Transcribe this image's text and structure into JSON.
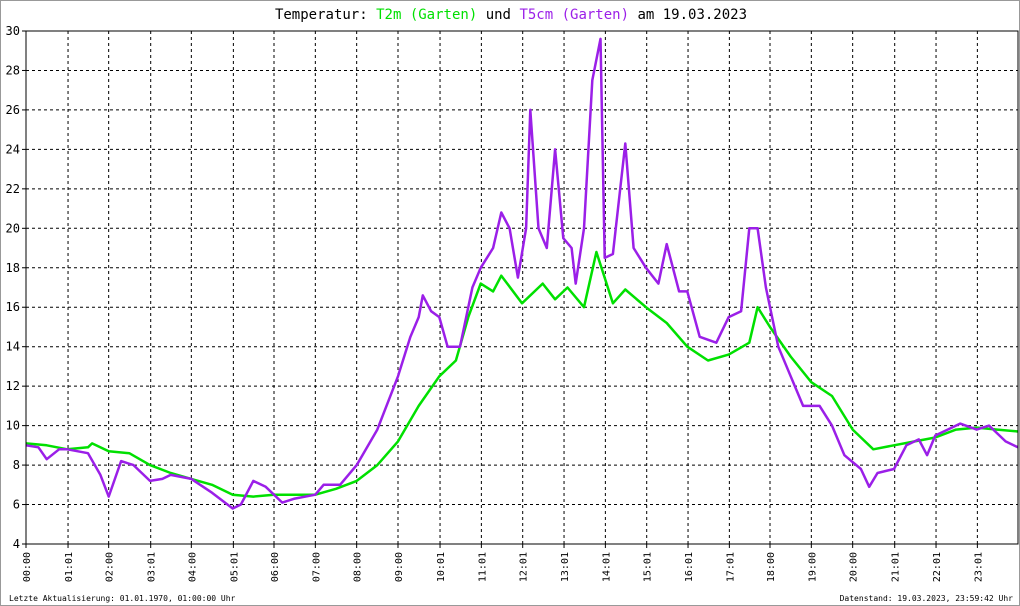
{
  "chart_data": {
    "type": "line",
    "title": {
      "prefix": "Temperatur:",
      "series1": "T2m (Garten)",
      "joiner": "und",
      "series2": "T5cm (Garten)",
      "suffix": "am 19.03.2023"
    },
    "xlabel": "",
    "ylabel": "",
    "xlim": [
      0,
      24
    ],
    "ylim": [
      4,
      30
    ],
    "grid": true,
    "yticks": [
      4,
      6,
      8,
      10,
      12,
      14,
      16,
      18,
      20,
      22,
      24,
      26,
      28,
      30
    ],
    "xticks": [
      {
        "h": 0,
        "label": "00:00"
      },
      {
        "h": 1.017,
        "label": "01:01"
      },
      {
        "h": 2,
        "label": "02:00"
      },
      {
        "h": 3.017,
        "label": "03:01"
      },
      {
        "h": 4,
        "label": "04:00"
      },
      {
        "h": 5.017,
        "label": "05:01"
      },
      {
        "h": 6,
        "label": "06:00"
      },
      {
        "h": 7,
        "label": "07:00"
      },
      {
        "h": 8,
        "label": "08:00"
      },
      {
        "h": 9,
        "label": "09:00"
      },
      {
        "h": 10.017,
        "label": "10:01"
      },
      {
        "h": 11.017,
        "label": "11:01"
      },
      {
        "h": 12.017,
        "label": "12:01"
      },
      {
        "h": 13.017,
        "label": "13:01"
      },
      {
        "h": 14.017,
        "label": "14:01"
      },
      {
        "h": 15.017,
        "label": "15:01"
      },
      {
        "h": 16.017,
        "label": "16:01"
      },
      {
        "h": 17.017,
        "label": "17:01"
      },
      {
        "h": 18,
        "label": "18:00"
      },
      {
        "h": 19,
        "label": "19:00"
      },
      {
        "h": 20,
        "label": "20:00"
      },
      {
        "h": 21.017,
        "label": "21:01"
      },
      {
        "h": 22.017,
        "label": "22:01"
      },
      {
        "h": 23.017,
        "label": "23:01"
      }
    ],
    "series": [
      {
        "name": "T2m (Garten)",
        "color": "#00e000",
        "x": [
          0,
          0.5,
          1,
          1.5,
          1.6,
          2,
          2.5,
          3,
          3.5,
          4,
          4.5,
          5,
          5.5,
          6,
          6.5,
          7,
          7.5,
          8,
          8.5,
          9,
          9.5,
          10,
          10.4,
          10.7,
          11,
          11.3,
          11.5,
          12,
          12.5,
          12.8,
          13.1,
          13.5,
          13.8,
          14.2,
          14.5,
          15,
          15.5,
          16,
          16.5,
          17,
          17.5,
          17.7,
          18,
          18.5,
          19,
          19.5,
          20,
          20.5,
          21,
          21.5,
          22,
          22.5,
          23,
          23.5,
          24
        ],
        "y": [
          9.1,
          9.0,
          8.8,
          8.9,
          9.1,
          8.7,
          8.6,
          8.0,
          7.6,
          7.3,
          7.0,
          6.5,
          6.4,
          6.5,
          6.5,
          6.5,
          6.8,
          7.2,
          8.0,
          9.2,
          11.0,
          12.5,
          13.3,
          15.5,
          17.2,
          16.8,
          17.6,
          16.2,
          17.2,
          16.4,
          17.0,
          16.0,
          18.8,
          16.2,
          16.9,
          16.0,
          15.2,
          14.0,
          13.3,
          13.6,
          14.2,
          16.0,
          15.0,
          13.5,
          12.2,
          11.5,
          9.8,
          8.8,
          9.0,
          9.2,
          9.4,
          9.8,
          9.9,
          9.8,
          9.7
        ]
      },
      {
        "name": "T5cm (Garten)",
        "color": "#9b1fe8",
        "x": [
          0,
          0.3,
          0.5,
          0.8,
          1,
          1.5,
          1.8,
          2.0,
          2.3,
          2.6,
          3,
          3.3,
          3.5,
          4,
          4.5,
          5,
          5.2,
          5.5,
          5.8,
          6.2,
          6.5,
          7,
          7.2,
          7.6,
          8,
          8.5,
          9,
          9.3,
          9.5,
          9.6,
          9.8,
          10,
          10.2,
          10.5,
          10.8,
          11,
          11.3,
          11.5,
          11.7,
          11.9,
          12.1,
          12.2,
          12.4,
          12.6,
          12.8,
          13,
          13.2,
          13.3,
          13.5,
          13.7,
          13.9,
          14.0,
          14.2,
          14.5,
          14.7,
          15,
          15.3,
          15.5,
          15.8,
          16,
          16.3,
          16.7,
          17,
          17.3,
          17.5,
          17.7,
          17.9,
          18.2,
          18.5,
          18.8,
          19.2,
          19.5,
          19.8,
          20.2,
          20.4,
          20.6,
          21,
          21.3,
          21.6,
          21.8,
          22,
          22.3,
          22.6,
          23,
          23.3,
          23.7,
          24
        ],
        "y": [
          9.0,
          8.9,
          8.3,
          8.8,
          8.8,
          8.6,
          7.5,
          6.4,
          8.2,
          8.0,
          7.2,
          7.3,
          7.5,
          7.3,
          6.6,
          5.8,
          6.0,
          7.2,
          6.9,
          6.1,
          6.3,
          6.5,
          7.0,
          7.0,
          8.0,
          9.8,
          12.5,
          14.5,
          15.5,
          16.6,
          15.8,
          15.5,
          14.0,
          14.0,
          17.0,
          18.0,
          19.0,
          20.8,
          20.0,
          17.5,
          20.0,
          26.0,
          20.0,
          19.0,
          24.0,
          19.5,
          19.0,
          17.2,
          20.0,
          27.5,
          29.6,
          18.5,
          18.7,
          24.3,
          19.0,
          18.0,
          17.2,
          19.2,
          16.8,
          16.8,
          14.5,
          14.2,
          15.5,
          15.8,
          20.0,
          20.0,
          17.0,
          14.0,
          12.5,
          11.0,
          11.0,
          10.0,
          8.5,
          7.8,
          6.9,
          7.6,
          7.8,
          9.0,
          9.3,
          8.5,
          9.5,
          9.8,
          10.1,
          9.8,
          10.0,
          9.2,
          8.9
        ]
      }
    ]
  },
  "footer": {
    "last_update": "Letzte Aktualisierung: 01.01.1970, 01:00:00 Uhr",
    "data_status": "Datenstand: 19.03.2023, 23:59:42 Uhr"
  }
}
